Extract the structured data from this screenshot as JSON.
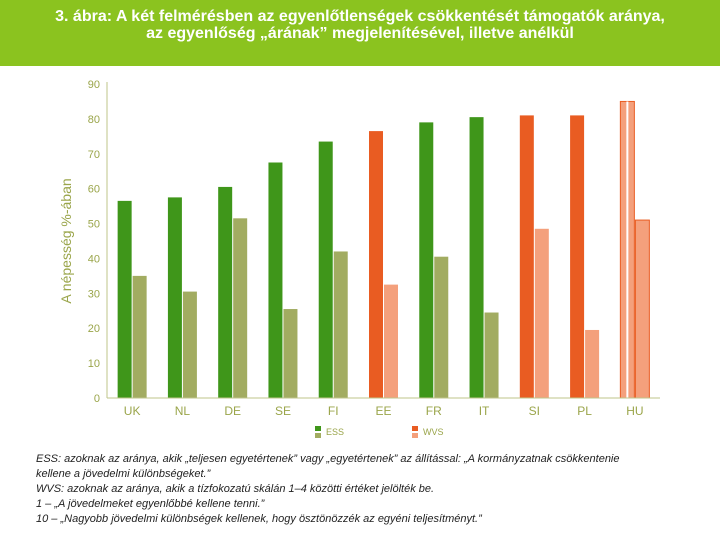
{
  "header": {
    "title_line1": "3. ábra: A két felmérésben az egyenlőtlenségek csökkentését támogatók aránya,",
    "title_line2": "az egyenlőség „árának” megjelenítésével, illetve anélkül"
  },
  "colors": {
    "title_bg": "#8bc31f",
    "ess_dark": "#3f961a",
    "ess_light": "#a2ac61",
    "wvs_dark": "#e95c22",
    "wvs_light": "#f4a07c",
    "axis_text": "#9aa54a"
  },
  "chart_data": {
    "type": "bar",
    "title": "",
    "ylabel": "A népesség %-ában",
    "xlabel": "",
    "ylim": [
      0,
      90
    ],
    "yticks": [
      0,
      10,
      20,
      30,
      40,
      50,
      60,
      70,
      80,
      90
    ],
    "grid": false,
    "legend_position": "bottom",
    "categories": [
      "UK",
      "NL",
      "DE",
      "SE",
      "FI",
      "EE",
      "FR",
      "IT",
      "SI",
      "PL",
      "HU"
    ],
    "survey": [
      "ESS",
      "ESS",
      "ESS",
      "ESS",
      "ESS",
      "WVS",
      "ESS",
      "ESS",
      "WVS",
      "WVS",
      "WVS"
    ],
    "series": [
      {
        "values": [
          56.5,
          57.5,
          60.5,
          67.5,
          73.5,
          76.5,
          79,
          80.5,
          81,
          81,
          85
        ]
      },
      {
        "values": [
          35,
          30.5,
          51.5,
          25.5,
          42,
          32.5,
          40.5,
          24.5,
          48.5,
          19.5,
          51
        ]
      }
    ],
    "legend": [
      {
        "label": "ESS",
        "colors": [
          "#3f961a",
          "#a2ac61"
        ]
      },
      {
        "label": "WVS",
        "colors": [
          "#e95c22",
          "#f4a07c"
        ]
      }
    ]
  },
  "notes": [
    "ESS: azoknak az aránya, akik „teljesen egyetértenek” vagy „egyetértenek” az állítással: „A kormányzatnak csökkentenie",
    "kellene a jövedelmi különbségeket.”",
    "WVS: azoknak az aránya, akik a tízfokozatú skálán 1–4 közötti értéket jelölték be.",
    "1 – „A jövedelmeket egyenlőbbé kellene tenni.”",
    "10 – „Nagyobb jövedelmi különbségek kellenek, hogy ösztönözzék az egyéni teljesítményt.”"
  ]
}
